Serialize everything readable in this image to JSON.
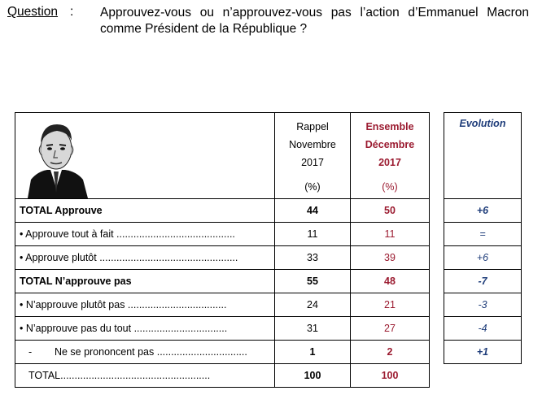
{
  "question": {
    "label": "Question",
    "colon": ":",
    "text": "Approuvez-vous ou n’approuvez-vous pas l’action d’Emmanuel Macron comme Président de la République ?"
  },
  "header": {
    "rappel": [
      "Rappel",
      "Novembre",
      "2017",
      "(%)"
    ],
    "ensemble": [
      "Ensemble",
      "Décembre",
      "2017",
      "(%)"
    ],
    "evolution": "Evolution"
  },
  "rows": [
    {
      "label": "TOTAL Approuve",
      "rappel": "44",
      "ensemble": "50",
      "evolution": "+6",
      "bold": true
    },
    {
      "label": "• Approuve tout à fait ..........................................",
      "rappel": "11",
      "ensemble": "11",
      "evolution": "=",
      "bold": false
    },
    {
      "label": "• Approuve plutôt .................................................",
      "rappel": "33",
      "ensemble": "39",
      "evolution": "+6",
      "bold": false
    },
    {
      "label": "TOTAL N’approuve pas",
      "rappel": "55",
      "ensemble": "48",
      "evolution": "-7",
      "bold": true
    },
    {
      "label": "• N’approuve plutôt pas ...................................",
      "rappel": "24",
      "ensemble": "21",
      "evolution": "-3",
      "bold": false
    },
    {
      "label": "• N’approuve pas du tout .................................",
      "rappel": "31",
      "ensemble": "27",
      "evolution": "-4",
      "bold": false
    },
    {
      "label": "-        Ne se prononcent pas ................................",
      "rappel": "1",
      "ensemble": "2",
      "evolution": "+1",
      "bold": true
    },
    {
      "label": "TOTAL.....................................................",
      "rappel": "100",
      "ensemble": "100",
      "evolution": "",
      "bold": true
    }
  ]
}
